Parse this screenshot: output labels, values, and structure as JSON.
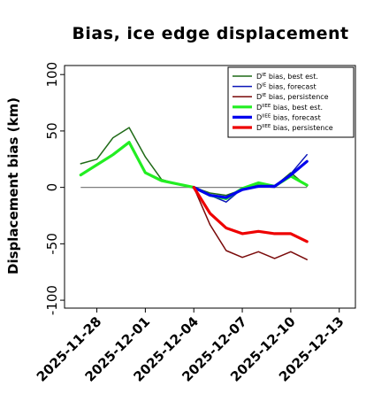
{
  "chart_data": {
    "type": "line",
    "title": "Bias, ice edge displacement",
    "xlabel": "",
    "ylabel": "Displacement bias (km)",
    "ylim": [
      -107,
      108
    ],
    "xlim": [
      "2025-11-26",
      "2025-12-14"
    ],
    "yticks": [
      100,
      50,
      0,
      -50,
      -100
    ],
    "yticks_labels": [
      "100",
      "50",
      "0",
      "-50",
      "-100"
    ],
    "xticks": [
      "2025-11-28",
      "2025-12-01",
      "2025-12-04",
      "2025-12-07",
      "2025-12-10",
      "2025-12-13"
    ],
    "highlighted_xtick": "2025-12-04",
    "highlight_color": "#2e8b22",
    "grid": false,
    "legend_position": "top-right",
    "series": [
      {
        "name": "Dᴵᴱ bias, best est.",
        "legend_base": "D",
        "legend_sup": "IE",
        "legend_rest": " bias, best est.",
        "color": "#1f6a17",
        "width": 1.5,
        "points": [
          [
            "2025-11-27",
            21
          ],
          [
            "2025-11-28",
            25
          ],
          [
            "2025-11-29",
            44
          ],
          [
            "2025-11-30",
            53
          ],
          [
            "2025-12-01",
            27
          ],
          [
            "2025-12-02",
            7
          ],
          [
            "2025-12-03",
            3
          ],
          [
            "2025-12-04",
            0
          ],
          [
            "2025-12-05",
            -5
          ],
          [
            "2025-12-06",
            -7
          ],
          [
            "2025-12-07",
            -2
          ],
          [
            "2025-12-08",
            3
          ],
          [
            "2025-12-09",
            1
          ],
          [
            "2025-12-10",
            13
          ],
          [
            "2025-12-11",
            1
          ]
        ]
      },
      {
        "name": "Dᴵᴱ bias, forecast",
        "legend_base": "D",
        "legend_sup": "IE",
        "legend_rest": " bias, forecast",
        "color": "#0a14b8",
        "width": 1.5,
        "points": [
          [
            "2025-12-04",
            0
          ],
          [
            "2025-12-05",
            -7
          ],
          [
            "2025-12-06",
            -13
          ],
          [
            "2025-12-07",
            -1
          ],
          [
            "2025-12-08",
            1
          ],
          [
            "2025-12-09",
            0
          ],
          [
            "2025-12-10",
            12
          ],
          [
            "2025-12-11",
            29
          ]
        ]
      },
      {
        "name": "Dᴵᴱ bias, persistence",
        "legend_base": "D",
        "legend_sup": "IE",
        "legend_rest": " bias, persistence",
        "color": "#7a0a0a",
        "width": 1.5,
        "points": [
          [
            "2025-12-04",
            0
          ],
          [
            "2025-12-05",
            -33
          ],
          [
            "2025-12-06",
            -56
          ],
          [
            "2025-12-07",
            -62
          ],
          [
            "2025-12-08",
            -57
          ],
          [
            "2025-12-09",
            -63
          ],
          [
            "2025-12-10",
            -57
          ],
          [
            "2025-12-11",
            -64
          ]
        ]
      },
      {
        "name": "Dᴵᴵᴱᴱ bias, best est.",
        "legend_base": "D",
        "legend_sup": "IIEE",
        "legend_rest": " bias, best est.",
        "color": "#22ee22",
        "width": 3.2,
        "points": [
          [
            "2025-11-27",
            11
          ],
          [
            "2025-11-28",
            20
          ],
          [
            "2025-11-29",
            29
          ],
          [
            "2025-11-30",
            40
          ],
          [
            "2025-12-01",
            13
          ],
          [
            "2025-12-02",
            6
          ],
          [
            "2025-12-03",
            3
          ],
          [
            "2025-12-04",
            0
          ],
          [
            "2025-12-05",
            -7
          ],
          [
            "2025-12-06",
            -10
          ],
          [
            "2025-12-07",
            -1
          ],
          [
            "2025-12-08",
            4
          ],
          [
            "2025-12-09",
            1
          ],
          [
            "2025-12-10",
            10
          ],
          [
            "2025-12-11",
            2
          ]
        ]
      },
      {
        "name": "Dᴵᴵᴱᴱ bias, forecast",
        "legend_base": "D",
        "legend_sup": "IIEE",
        "legend_rest": " bias, forecast",
        "color": "#0000ee",
        "width": 3.2,
        "points": [
          [
            "2025-12-04",
            0
          ],
          [
            "2025-12-05",
            -7
          ],
          [
            "2025-12-06",
            -9
          ],
          [
            "2025-12-07",
            -2
          ],
          [
            "2025-12-08",
            1
          ],
          [
            "2025-12-09",
            1
          ],
          [
            "2025-12-10",
            11
          ],
          [
            "2025-12-11",
            23
          ]
        ]
      },
      {
        "name": "Dᴵᴵᴱᴱ bias, persistence",
        "legend_base": "D",
        "legend_sup": "IIEE",
        "legend_rest": " bias, persistence",
        "color": "#ee0000",
        "width": 3.2,
        "points": [
          [
            "2025-12-04",
            0
          ],
          [
            "2025-12-05",
            -23
          ],
          [
            "2025-12-06",
            -36
          ],
          [
            "2025-12-07",
            -41
          ],
          [
            "2025-12-08",
            -39
          ],
          [
            "2025-12-09",
            -41
          ],
          [
            "2025-12-10",
            -41
          ],
          [
            "2025-12-11",
            -48
          ]
        ]
      }
    ]
  }
}
